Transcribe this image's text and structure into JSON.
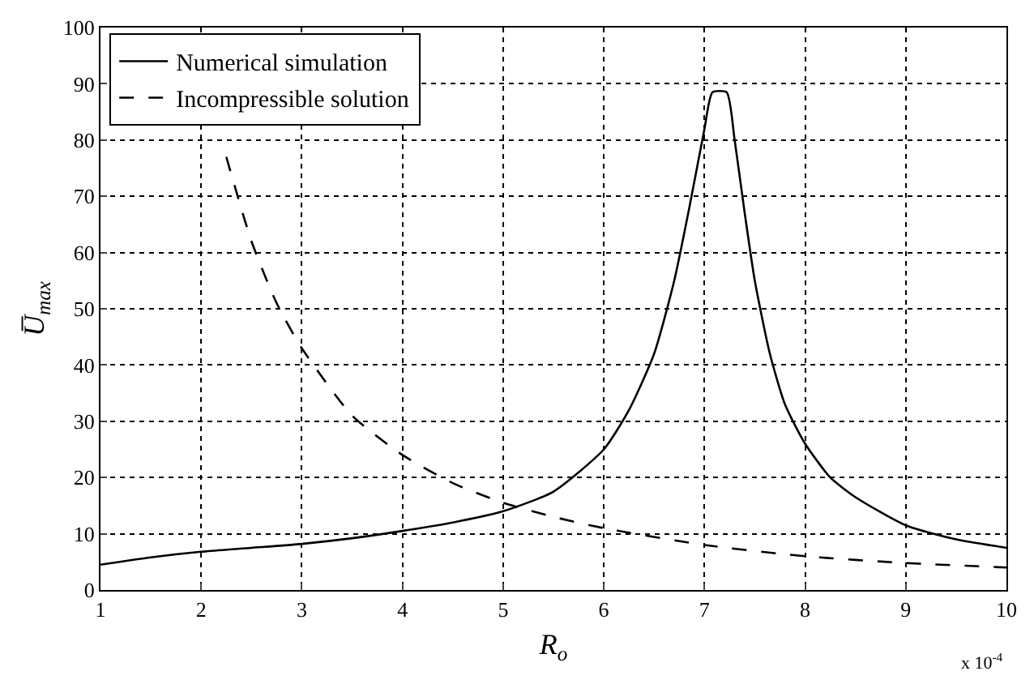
{
  "chart_data": {
    "type": "line",
    "xlabel": "R$_{o}$",
    "ylabel": "U̅$_{max}$",
    "xlim": [
      1,
      10
    ],
    "xticks": [
      1,
      2,
      3,
      4,
      5,
      6,
      7,
      8,
      9,
      10
    ],
    "ylim": [
      0,
      100
    ],
    "yticks": [
      0,
      10,
      20,
      30,
      40,
      50,
      60,
      70,
      80,
      90,
      100
    ],
    "grid": true,
    "legend": "top left",
    "marker": "none",
    "annotations": [
      "x 10$^{-4}$"
    ],
    "series": [
      {
        "name": "Numerical simulation",
        "color": "#000000",
        "line_style": "solid",
        "x": [
          1,
          1.5,
          2,
          2.5,
          3,
          3.5,
          4,
          4.5,
          5,
          5.5,
          6,
          6.25,
          6.5,
          6.7,
          6.85,
          7.0,
          7.08,
          7.22,
          7.3,
          7.4,
          7.5,
          7.65,
          7.8,
          8,
          8.25,
          8.5,
          9,
          9.5,
          10
        ],
        "values": [
          4.5,
          5.8,
          6.8,
          7.5,
          8.2,
          9.2,
          10.5,
          12,
          14,
          17.5,
          25,
          32,
          42,
          55,
          68,
          82,
          88.5,
          88.5,
          80,
          67,
          55,
          42,
          33,
          26,
          20,
          16.5,
          11.5,
          9,
          7.5
        ]
      },
      {
        "name": "Incompressible solution",
        "color": "#000000",
        "line_style": "dashed",
        "x": [
          2.25,
          2.5,
          2.75,
          3,
          3.5,
          4,
          4.5,
          5,
          5.5,
          6,
          7,
          8,
          9,
          10
        ],
        "values": [
          77,
          62,
          51,
          43,
          31,
          24,
          19,
          15.5,
          13,
          11,
          8,
          6,
          4.8,
          4
        ]
      }
    ]
  }
}
